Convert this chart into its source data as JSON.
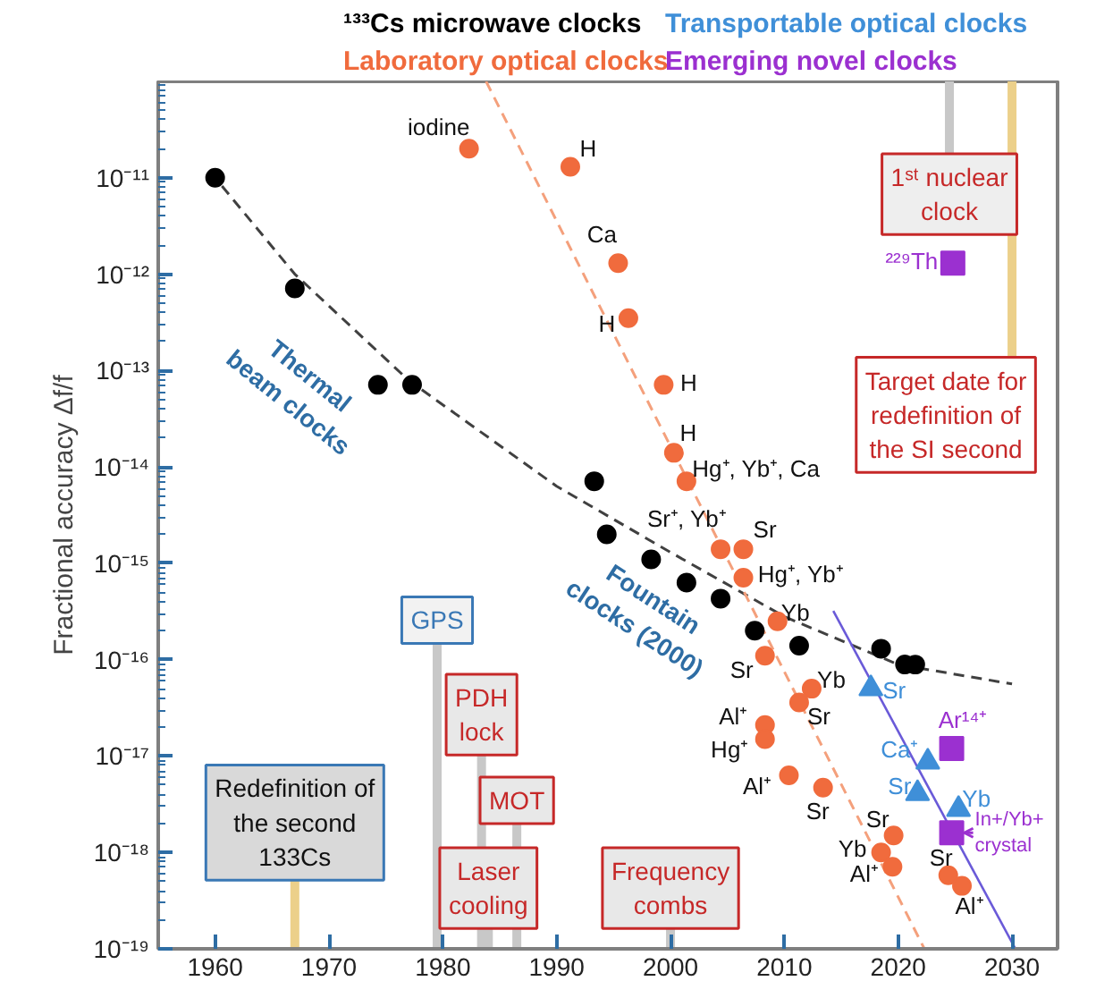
{
  "chart_data": {
    "type": "scatter",
    "ylabel": "Fractional accuracy Δf/f",
    "log": "y",
    "grid": false,
    "legend": "top",
    "xlim": [
      1955,
      2034
    ],
    "xticks": [
      1960,
      1970,
      1980,
      1990,
      2000,
      2010,
      2020,
      2030
    ],
    "ylim": [
      1e-19,
      1e-10
    ],
    "yticks": [
      {
        "value": 1e-19,
        "label": "10⁻¹⁹"
      },
      {
        "value": 1e-18,
        "label": "10⁻¹⁸"
      },
      {
        "value": 1e-17,
        "label": "10⁻¹⁷"
      },
      {
        "value": 1e-16,
        "label": "10⁻¹⁶"
      },
      {
        "value": 1e-15,
        "label": "10⁻¹⁵"
      },
      {
        "value": 1e-14,
        "label": "10⁻¹⁴"
      },
      {
        "value": 1e-13,
        "label": "10⁻¹³"
      },
      {
        "value": 1e-12,
        "label": "10⁻¹²"
      },
      {
        "value": 1e-11,
        "label": "10⁻¹¹"
      }
    ],
    "series": [
      {
        "name": "¹³³Cs microwave clocks",
        "marker": "circle",
        "color": "#000000",
        "x": [
          1960,
          1967,
          1974.3,
          1977.3,
          1993.3,
          1994.4,
          1998.3,
          2001.4,
          2004.4,
          2007.4,
          2011.3,
          2018.5,
          2020.6,
          2021.5
        ],
        "values": [
          1e-11,
          7.1e-13,
          7.1e-14,
          7.1e-14,
          7.1e-15,
          2e-15,
          1.1e-15,
          6.3e-16,
          4.3e-16,
          2e-16,
          1.4e-16,
          1.3e-16,
          8.9e-17,
          8.9e-17
        ]
      },
      {
        "name": "Laboratory optical clocks",
        "marker": "circle",
        "color": "#f06b3d",
        "x": [
          1982.3,
          1991.2,
          1995.4,
          1996.3,
          1999.4,
          2000.3,
          2001.4,
          2004.4,
          2006.4,
          2006.4,
          2009.4,
          2008.3,
          2012.4,
          2011.3,
          2008.3,
          2008.3,
          2010.4,
          2013.4,
          2019.6,
          2018.5,
          2019.5,
          2024.4,
          2025.6
        ],
        "values": [
          2e-11,
          1.3e-11,
          1.3e-12,
          3.5e-13,
          7.1e-14,
          1.4e-14,
          7.1e-15,
          1.4e-15,
          1.4e-15,
          7.1e-16,
          2.5e-16,
          1.1e-16,
          5e-17,
          3.6e-17,
          2.1e-17,
          1.5e-17,
          6.3e-18,
          4.7e-18,
          1.5e-18,
          1e-18,
          7.1e-19,
          5.8e-19,
          4.5e-19
        ]
      },
      {
        "name": "Transportable optical clocks",
        "marker": "triangle",
        "color": "#3f8fd8",
        "x": [
          2017.6,
          2022.6,
          2021.7,
          2025.3
        ],
        "values": [
          5e-17,
          8.7e-18,
          4.1e-18,
          2.8e-18
        ]
      },
      {
        "name": "Emerging novel clocks",
        "marker": "square",
        "color": "#9b30d0",
        "x": [
          2024.8,
          2024.7,
          2024.7
        ],
        "values": [
          1.3e-12,
          1.2e-17,
          1.6e-18
        ]
      },
      {
        "type": "line",
        "line_style": "dashed",
        "color": "#404040",
        "x": [
          1960,
          1967,
          1977,
          1990,
          2000,
          2010,
          2020,
          2030
        ],
        "values": [
          1e-11,
          1e-12,
          7.9e-14,
          6.3e-15,
          1.3e-15,
          2.8e-16,
          8.9e-17,
          5.6e-17
        ]
      },
      {
        "type": "line",
        "line_style": "dashed",
        "color": "#f4a07c",
        "x": [
          1983.8,
          2022.3
        ],
        "values": [
          1e-10,
          1e-19
        ]
      },
      {
        "type": "line",
        "line_style": "solid",
        "color": "#6a5ad8",
        "x": [
          2014.3,
          2030.3
        ],
        "values": [
          3.2e-16,
          1e-19
        ]
      }
    ],
    "ref_lines": [
      {
        "axis": "x",
        "value": 1967,
        "label": "Redefinition of the second 133Cs",
        "color": "#ecd08a"
      },
      {
        "axis": "x",
        "value": 1979.5,
        "label": "GPS",
        "color": "#c8c8c8"
      },
      {
        "axis": "x",
        "value": 1983.4,
        "label": "PDH lock",
        "color": "#c8c8c8"
      },
      {
        "axis": "x",
        "value": 1984,
        "label": "Laser cooling",
        "color": "#c8c8c8"
      },
      {
        "axis": "x",
        "value": 1986.5,
        "label": "MOT",
        "color": "#c8c8c8"
      },
      {
        "axis": "x",
        "value": 2000,
        "label": "Frequency combs",
        "color": "#c8c8c8"
      },
      {
        "axis": "x",
        "value": 2024.5,
        "label": "1ˢᵗ nuclear clock",
        "color": "#c8c8c8"
      },
      {
        "axis": "x",
        "value": 2030,
        "label": "Target date for redefinition of the SI second",
        "color": "#ecd08a"
      }
    ],
    "annotations": [
      {
        "text": "iodine",
        "x": 1982.3,
        "y": 2e-11
      },
      {
        "text": "H",
        "x": 1991.2,
        "y": 1.3e-11
      },
      {
        "text": "Ca",
        "x": 1995.4,
        "y": 1.3e-12
      },
      {
        "text": "H",
        "x": 1996.3,
        "y": 3.5e-13
      },
      {
        "text": "H",
        "x": 1999.4,
        "y": 7.1e-14
      },
      {
        "text": "H",
        "x": 2000.3,
        "y": 1.4e-14
      },
      {
        "text": "Hg⁺, Yb⁺, Ca",
        "x": 2001.4,
        "y": 7.1e-15
      },
      {
        "text": "Sr⁺, Yb⁺",
        "x": 2004.4,
        "y": 1.4e-15
      },
      {
        "text": "Sr",
        "x": 2006.4,
        "y": 1.4e-15
      },
      {
        "text": "Hg⁺, Yb⁺",
        "x": 2006.4,
        "y": 7.1e-16
      },
      {
        "text": "Yb",
        "x": 2009.4,
        "y": 2.5e-16
      },
      {
        "text": "Sr",
        "x": 2008.3,
        "y": 1.1e-16
      },
      {
        "text": "Yb",
        "x": 2012.4,
        "y": 5e-17
      },
      {
        "text": "Sr",
        "x": 2011.3,
        "y": 3.6e-17
      },
      {
        "text": "Al⁺",
        "x": 2008.3,
        "y": 2.1e-17
      },
      {
        "text": "Hg⁺",
        "x": 2008.3,
        "y": 1.5e-17
      },
      {
        "text": "Al⁺",
        "x": 2010.4,
        "y": 6.3e-18
      },
      {
        "text": "Sr",
        "x": 2013.4,
        "y": 4.7e-18
      },
      {
        "text": "Sr",
        "x": 2019.6,
        "y": 1.5e-18
      },
      {
        "text": "Yb",
        "x": 2018.5,
        "y": 1e-18
      },
      {
        "text": "Al⁺",
        "x": 2019.5,
        "y": 7.1e-19
      },
      {
        "text": "Sr",
        "x": 2024.4,
        "y": 5.8e-19
      },
      {
        "text": "Al⁺",
        "x": 2025.6,
        "y": 4.5e-19
      },
      {
        "text": "Sr",
        "x": 2017.6,
        "y": 5e-17
      },
      {
        "text": "Ca⁺",
        "x": 2022.6,
        "y": 8.7e-18
      },
      {
        "text": "Sr",
        "x": 2021.7,
        "y": 4.1e-18
      },
      {
        "text": "Yb",
        "x": 2025.3,
        "y": 2.8e-18
      },
      {
        "text": "²²⁹Th",
        "x": 2024.8,
        "y": 1.3e-12
      },
      {
        "text": "Ar¹⁴⁺",
        "x": 2024.7,
        "y": 1.2e-17
      },
      {
        "text": "In+/Yb+ crystal",
        "x": 2024.7,
        "y": 1.6e-18
      },
      "Thermal beam clocks",
      "Fountain clocks (2000)"
    ]
  }
}
